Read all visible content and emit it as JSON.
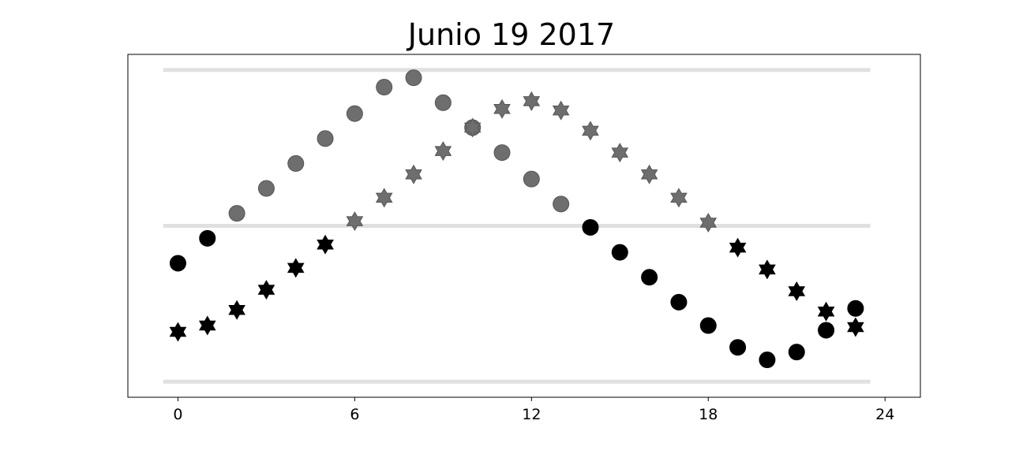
{
  "chart_data": {
    "type": "scatter",
    "title": "Junio 19 2017",
    "xlabel": "",
    "ylabel": "",
    "xlim": [
      -1.7,
      25.2
    ],
    "ylim": [
      -1.1,
      1.1
    ],
    "xticks": [
      "0",
      "6",
      "12",
      "18",
      "24"
    ],
    "xtick_values": [
      0,
      6,
      12,
      18,
      24
    ],
    "hlines": [
      -1.0,
      0.0,
      1.0
    ],
    "grid": false,
    "colors": {
      "highlight": "#6e6e6e",
      "base": "#000000",
      "hline": "#e0e0e0",
      "frame": "#000000"
    },
    "series": [
      {
        "marker": "circle",
        "x": [
          0,
          1,
          2,
          3,
          4,
          5,
          6,
          7,
          8,
          9,
          10,
          11,
          12,
          13,
          14,
          15,
          16,
          17,
          18,
          19,
          20,
          21,
          22,
          23
        ],
        "y": [
          -0.24,
          -0.08,
          0.08,
          0.24,
          0.4,
          0.56,
          0.72,
          0.89,
          0.95,
          0.79,
          0.63,
          0.47,
          0.3,
          0.14,
          -0.01,
          -0.17,
          -0.33,
          -0.49,
          -0.64,
          -0.78,
          -0.86,
          -0.81,
          -0.67,
          -0.53
        ],
        "gray_from": 2,
        "gray_to": 13
      },
      {
        "marker": "star6",
        "x": [
          0,
          1,
          2,
          3,
          4,
          5,
          6,
          7,
          8,
          9,
          10,
          11,
          12,
          13,
          14,
          15,
          16,
          17,
          18,
          19,
          20,
          21,
          22,
          23
        ],
        "y": [
          -0.68,
          -0.64,
          -0.54,
          -0.41,
          -0.27,
          -0.12,
          0.03,
          0.18,
          0.33,
          0.48,
          0.63,
          0.75,
          0.8,
          0.74,
          0.61,
          0.47,
          0.33,
          0.18,
          0.02,
          -0.14,
          -0.28,
          -0.42,
          -0.55,
          -0.65
        ],
        "gray_from": 6,
        "gray_to": 18
      }
    ]
  }
}
